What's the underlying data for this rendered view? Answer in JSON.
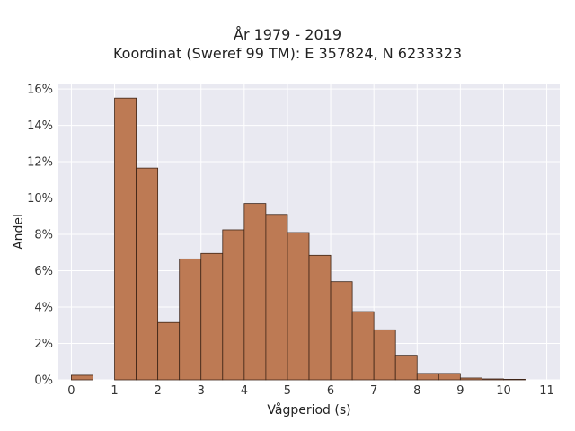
{
  "chart_data": {
    "type": "bar",
    "title_line1": "År 1979 - 2019",
    "title_line2": "Koordinat (Sweref 99 TM): E 357824, N 6233323",
    "xlabel": "Vågperiod (s)",
    "ylabel": "Andel",
    "xlim": [
      -0.3,
      11.3
    ],
    "ylim": [
      0,
      16.3
    ],
    "x_ticks": [
      0,
      1,
      2,
      3,
      4,
      5,
      6,
      7,
      8,
      9,
      10,
      11
    ],
    "y_ticks": [
      0,
      2,
      4,
      6,
      8,
      10,
      12,
      14,
      16
    ],
    "y_tick_labels": [
      "0%",
      "2%",
      "4%",
      "6%",
      "8%",
      "10%",
      "12%",
      "14%",
      "16%"
    ],
    "bin_width": 0.5,
    "bins": [
      {
        "x0": 0.0,
        "value": 0.25
      },
      {
        "x0": 0.5,
        "value": 0.0
      },
      {
        "x0": 1.0,
        "value": 15.5
      },
      {
        "x0": 1.5,
        "value": 11.65
      },
      {
        "x0": 2.0,
        "value": 3.15
      },
      {
        "x0": 2.5,
        "value": 6.65
      },
      {
        "x0": 3.0,
        "value": 6.95
      },
      {
        "x0": 3.5,
        "value": 8.25
      },
      {
        "x0": 4.0,
        "value": 9.7
      },
      {
        "x0": 4.5,
        "value": 9.1
      },
      {
        "x0": 5.0,
        "value": 8.1
      },
      {
        "x0": 5.5,
        "value": 6.85
      },
      {
        "x0": 6.0,
        "value": 5.4
      },
      {
        "x0": 6.5,
        "value": 3.75
      },
      {
        "x0": 7.0,
        "value": 2.75
      },
      {
        "x0": 7.5,
        "value": 1.35
      },
      {
        "x0": 8.0,
        "value": 0.35
      },
      {
        "x0": 8.5,
        "value": 0.35
      },
      {
        "x0": 9.0,
        "value": 0.1
      },
      {
        "x0": 9.5,
        "value": 0.05
      },
      {
        "x0": 10.0,
        "value": 0.03
      }
    ],
    "grid": true,
    "colors": {
      "bar_fill": "#bd7a54",
      "bar_edge": "#3d2416",
      "plot_bg": "#e9e9f1",
      "grid": "#ffffff"
    }
  }
}
